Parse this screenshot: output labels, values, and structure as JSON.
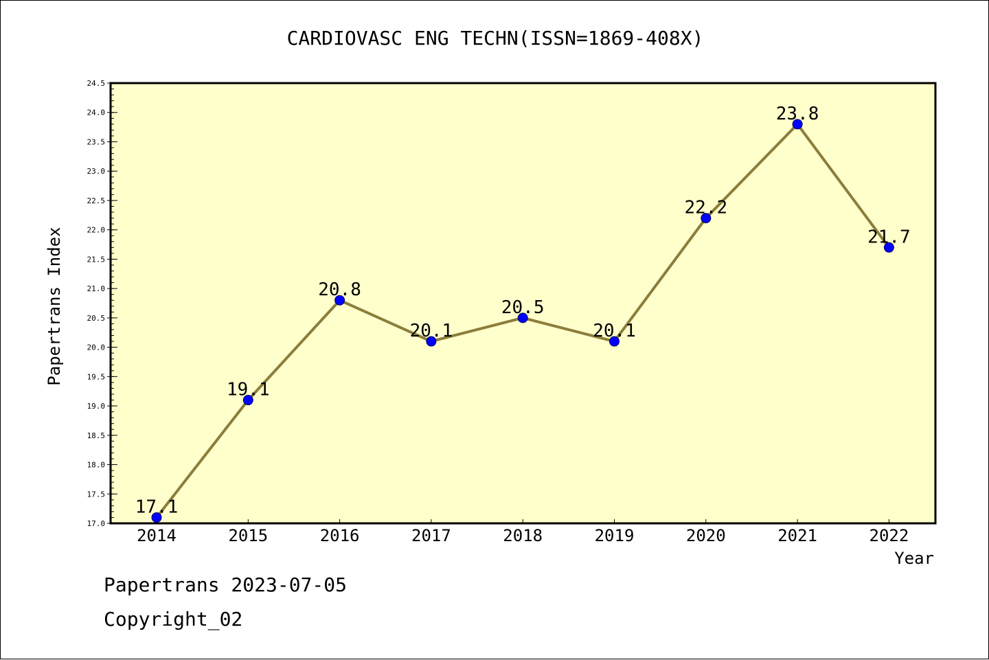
{
  "chart_data": {
    "type": "line",
    "title": "CARDIOVASC ENG TECHN(ISSN=1869-408X)",
    "xlabel": "Year",
    "ylabel": "Papertrans Index",
    "x": [
      "2014",
      "2015",
      "2016",
      "2017",
      "2018",
      "2019",
      "2020",
      "2021",
      "2022"
    ],
    "series": [
      {
        "values": [
          17.1,
          19.1,
          20.8,
          20.1,
          20.5,
          20.1,
          22.2,
          23.8,
          21.7
        ]
      }
    ],
    "data_labels": [
      "17.1",
      "19.1",
      "20.8",
      "20.1",
      "20.5",
      "20.1",
      "22.2",
      "23.8",
      "21.7"
    ],
    "ylim": [
      17.0,
      24.5
    ],
    "y_ticks": [
      "17.0",
      "17.5",
      "18.0",
      "18.5",
      "19.0",
      "19.5",
      "20.0",
      "20.5",
      "21.0",
      "21.5",
      "22.0",
      "22.5",
      "23.0",
      "23.5",
      "24.0",
      "24.5"
    ],
    "grid": false,
    "legend": "none",
    "colors": {
      "plot_background": "#ffffcc",
      "line": "#8b7d3a",
      "marker": "#0000ff",
      "axis": "#000000"
    }
  },
  "footer": {
    "line1": "Papertrans 2023-07-05",
    "line2": "Copyright_02"
  }
}
